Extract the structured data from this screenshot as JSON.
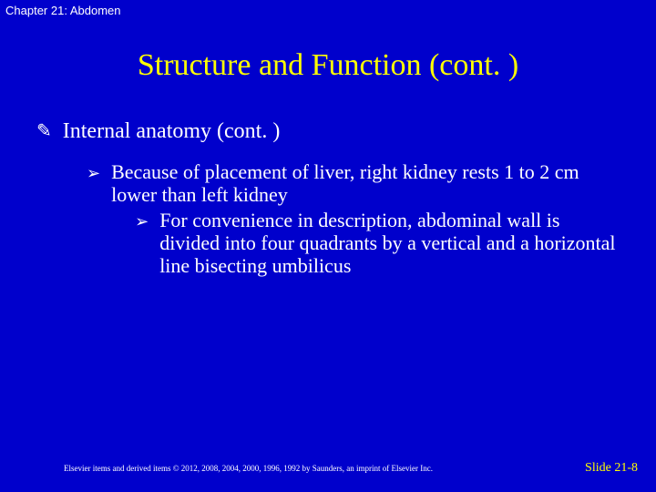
{
  "header": {
    "chapter": "Chapter 21: Abdomen"
  },
  "title": "Structure and Function (cont. )",
  "section": {
    "bullet": "✎",
    "heading": "Internal anatomy (cont. )"
  },
  "bullet1": {
    "marker": "➢",
    "text": "Because of placement of liver, right kidney rests 1 to 2 cm lower than left kidney"
  },
  "bullet2": {
    "marker": "➢",
    "text": "For convenience in description, abdominal wall is divided into four quadrants by a vertical and a horizontal line bisecting umbilicus"
  },
  "footer": {
    "copyright": "Elsevier items and derived items © 2012, 2008, 2004, 2000, 1996, 1992 by Saunders, an imprint of Elsevier Inc.",
    "slideNumber": "Slide 21-8"
  },
  "colors": {
    "background": "#0000cc",
    "titleColor": "#ffff00",
    "textColor": "#ffffff",
    "slideNumberColor": "#ffff00"
  }
}
